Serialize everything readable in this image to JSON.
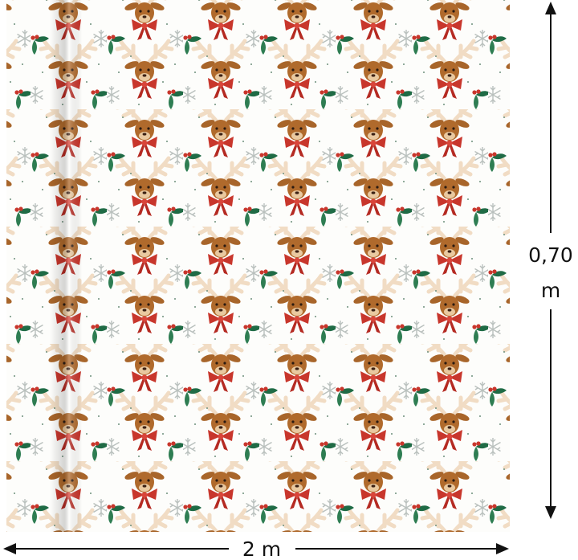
{
  "dimensions": {
    "height_value": "0,70",
    "height_unit": "m",
    "width": "2 m"
  }
}
